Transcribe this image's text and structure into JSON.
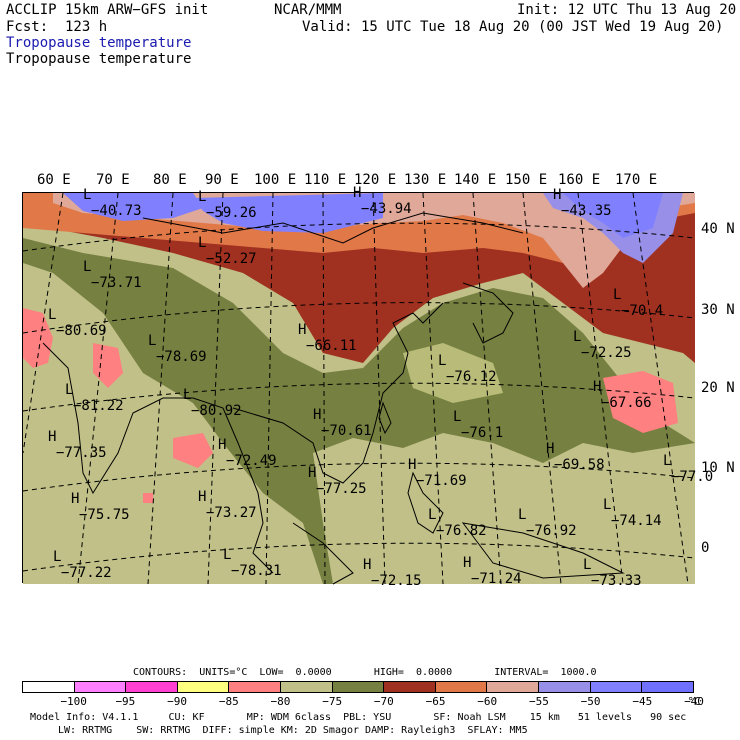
{
  "header": {
    "model": "ACCLIP 15km ARW−GFS init",
    "org": "NCAR/MMM",
    "init": "Init: 12 UTC Thu 13 Aug 20",
    "fcst": "Fcst:  123 h",
    "valid": "Valid: 15 UTC Tue 18 Aug 20 (00 JST Wed 19 Aug 20)",
    "field_title_1": "Tropopause temperature",
    "field_title_2": "Tropopause temperature"
  },
  "longitude_labels": [
    "60 E",
    "70 E",
    "80 E",
    "90 E",
    "100 E",
    "110 E",
    "120 E",
    "130 E",
    "140 E",
    "150 E",
    "160 E",
    "170 E"
  ],
  "latitude_labels": [
    "40 N",
    "30 N",
    "20 N",
    "10 N",
    "0"
  ],
  "map_labels": [
    {
      "mark": "L",
      "value": "−40.73"
    },
    {
      "mark": "L",
      "value": "−59.26"
    },
    {
      "mark": "H",
      "value": "−43.94"
    },
    {
      "mark": "H",
      "value": "−43.35"
    },
    {
      "mark": "L",
      "value": "−52.27"
    },
    {
      "mark": "L",
      "value": "−73.71"
    },
    {
      "mark": "L",
      "value": "−80.69"
    },
    {
      "mark": "L",
      "value": "−78.69"
    },
    {
      "mark": "H",
      "value": "−66.11"
    },
    {
      "mark": "L",
      "value": "−70.4"
    },
    {
      "mark": "L",
      "value": "−72.25"
    },
    {
      "mark": "L",
      "value": "−76.12"
    },
    {
      "mark": "H",
      "value": "−67.66"
    },
    {
      "mark": "L",
      "value": "−81.22"
    },
    {
      "mark": "L",
      "value": "−80.92"
    },
    {
      "mark": "H",
      "value": "−70.61"
    },
    {
      "mark": "L",
      "value": "−76.1"
    },
    {
      "mark": "H",
      "value": "−77.35"
    },
    {
      "mark": "H",
      "value": "−72.49"
    },
    {
      "mark": "H",
      "value": "−69.58"
    },
    {
      "mark": "L",
      "value": "−77.0"
    },
    {
      "mark": "H",
      "value": "−71.69"
    },
    {
      "mark": "H",
      "value": "−77.25"
    },
    {
      "mark": "H",
      "value": "−75.75"
    },
    {
      "mark": "H",
      "value": "−73.27"
    },
    {
      "mark": "L",
      "value": "−76.82"
    },
    {
      "mark": "L",
      "value": "−76.92"
    },
    {
      "mark": "L",
      "value": "−74.14"
    },
    {
      "mark": "L",
      "value": "−77.22"
    },
    {
      "mark": "L",
      "value": "−78.31"
    },
    {
      "mark": "H",
      "value": "−72.15"
    },
    {
      "mark": "H",
      "value": "−71.24"
    },
    {
      "mark": "L",
      "value": "−73.33"
    }
  ],
  "contours_line": "CONTOURS:  UNITS=°C  LOW=  0.0000       HIGH=  0.0000       INTERVAL=  1000.0",
  "colorbar": {
    "colors": [
      "#ffffff",
      "#ff80ff",
      "#ff40d0",
      "#ffff80",
      "#ff8080",
      "#c0c088",
      "#768040",
      "#a03020",
      "#e07848",
      "#e0a898",
      "#9890e8",
      "#8080ff",
      "#7070ff"
    ],
    "tick_labels": [
      "−100",
      "−95",
      "−90",
      "−85",
      "−80",
      "−75",
      "−70",
      "−65",
      "−60",
      "−55",
      "−50",
      "−45",
      "−40"
    ],
    "unit": "°C"
  },
  "footer": {
    "line1": "Model Info: V4.1.1     CU: KF       MP: WDM 6class  PBL: YSU       SF: Noah LSM    15 km   51 levels   90 sec",
    "line2": "LW: RRTMG    SW: RRTMG  DIFF: simple KM: 2D Smagor DAMP: Rayleigh3  SFLAY: MM5"
  }
}
